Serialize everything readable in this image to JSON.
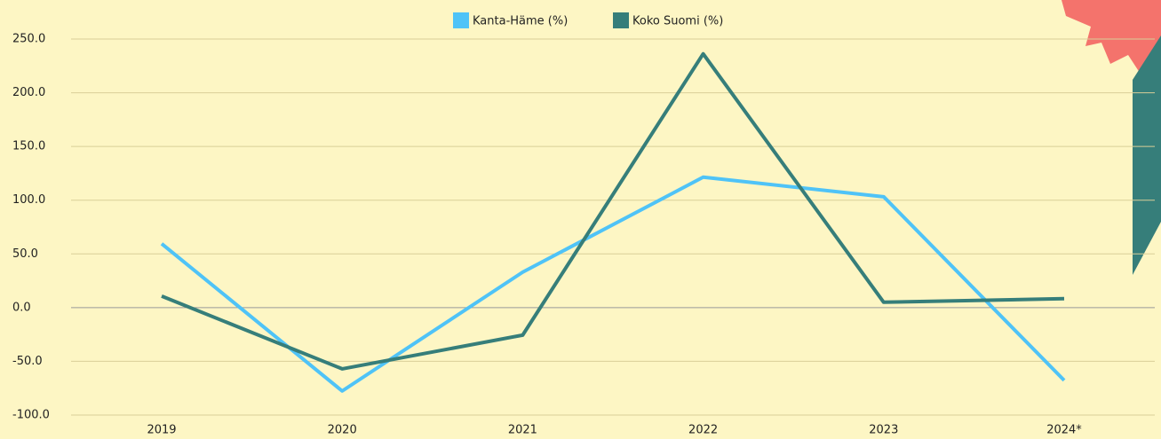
{
  "chart_data": {
    "type": "line",
    "categories": [
      "2019",
      "2020",
      "2021",
      "2022",
      "2023",
      "2024*"
    ],
    "series": [
      {
        "name": "Kanta-Häme (%)",
        "color": "#4fc3f7",
        "values": [
          59.5,
          -77.6,
          33,
          121.4,
          103.2,
          -67.7
        ]
      },
      {
        "name": "Koko Suomi (%)",
        "color": "#367e7a",
        "values": [
          10.7,
          -57,
          -25.6,
          236.2,
          5,
          8.3
        ]
      }
    ],
    "ylim": [
      -100,
      250
    ],
    "yticks": [
      {
        "value": -100,
        "label": "-100.0"
      },
      {
        "value": -50,
        "label": "-50.0"
      },
      {
        "value": 0,
        "label": "0.0"
      },
      {
        "value": 50,
        "label": "50.0"
      },
      {
        "value": 100,
        "label": "100.0"
      },
      {
        "value": 150,
        "label": "150.0"
      },
      {
        "value": 200,
        "label": "200.0"
      },
      {
        "value": 250,
        "label": "250.0"
      }
    ],
    "grid": true,
    "legend": "top"
  }
}
